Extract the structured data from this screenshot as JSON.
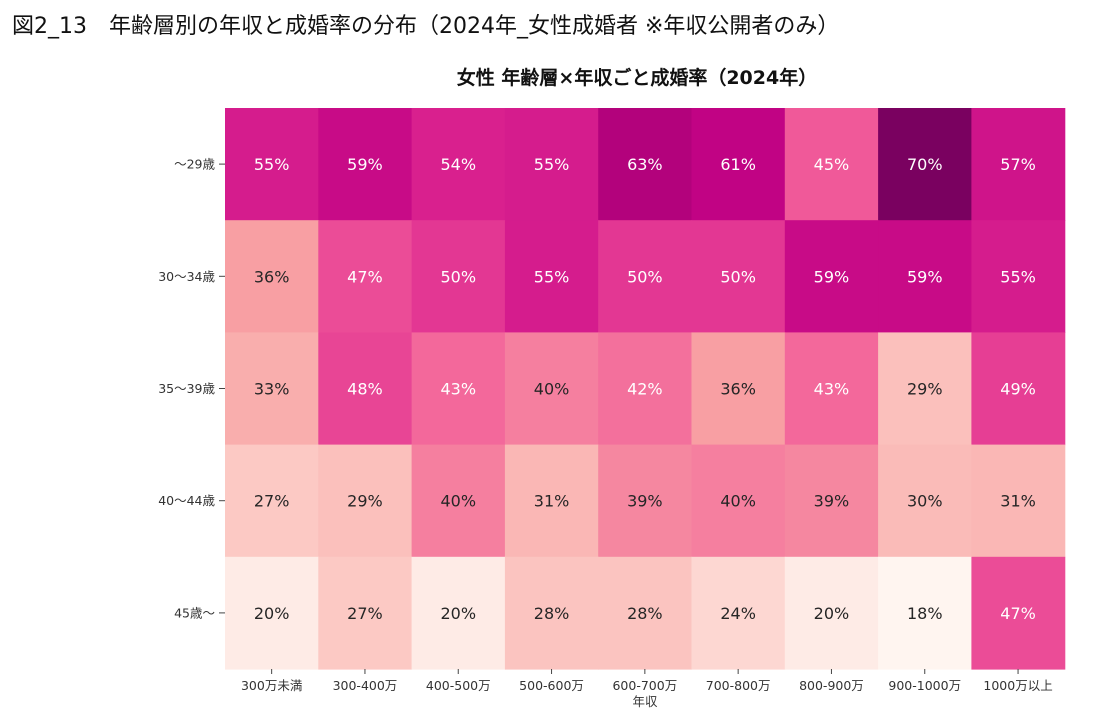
{
  "figure_caption": "図2_13　年齢層別の年収と成婚率の分布（2024年_女性成婚者 ※年収公開者のみ）",
  "chart_data": {
    "type": "heatmap",
    "title": "女性 年齢層×年収ごと成婚率（2024年）",
    "xlabel": "年収",
    "ylabel": "",
    "x_categories": [
      "300万未満",
      "300-400万",
      "400-500万",
      "500-600万",
      "600-700万",
      "700-800万",
      "800-900万",
      "900-1000万",
      "1000万以上"
    ],
    "y_categories": [
      "～29歳",
      "30～34歳",
      "35～39歳",
      "40～44歳",
      "45歳～"
    ],
    "values": [
      [
        55,
        59,
        54,
        55,
        63,
        61,
        45,
        70,
        57
      ],
      [
        36,
        47,
        50,
        55,
        50,
        50,
        59,
        59,
        55
      ],
      [
        33,
        48,
        43,
        40,
        42,
        36,
        43,
        29,
        49
      ],
      [
        27,
        29,
        40,
        31,
        39,
        40,
        39,
        30,
        31
      ],
      [
        20,
        27,
        20,
        28,
        28,
        24,
        20,
        18,
        47
      ]
    ],
    "value_suffix": "%",
    "color_range": [
      18,
      70
    ],
    "colormap": [
      "#fff5f0",
      "#fccac5",
      "#f8a4a4",
      "#f2609a",
      "#dd2590",
      "#c00283",
      "#7a0160"
    ],
    "grid": false,
    "legend": "none"
  }
}
